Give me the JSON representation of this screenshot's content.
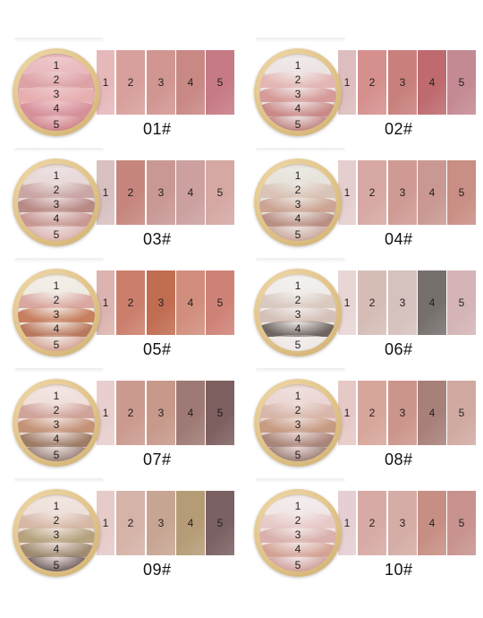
{
  "products": [
    {
      "label": "01#",
      "nums": [
        "1",
        "2",
        "3",
        "4",
        "5"
      ],
      "bands": [
        "#e9b9bd",
        "#dca2a6",
        "#e7aeb0",
        "#d6909a",
        "#c9767f"
      ],
      "swatches": [
        "#e6b8ba",
        "#d8a09c",
        "#d19692",
        "#c88884",
        "#c67a86"
      ]
    },
    {
      "label": "02#",
      "nums": [
        "1",
        "2",
        "3",
        "4",
        "5"
      ],
      "bands": [
        "#ece4e3",
        "#e3b6b4",
        "#d69a98",
        "#c98a87",
        "#b8706e"
      ],
      "swatches": [
        "#ddbdbd",
        "#d5908e",
        "#c9807c",
        "#be6a6e",
        "#c48a93"
      ]
    },
    {
      "label": "03#",
      "nums": [
        "1",
        "2",
        "3",
        "4",
        "5"
      ],
      "bands": [
        "#e8d8d8",
        "#c9a6a4",
        "#b88a86",
        "#c89893",
        "#d9aca6"
      ],
      "swatches": [
        "#d8c0c1",
        "#c6867e",
        "#c99895",
        "#cba09f",
        "#d5a8a4"
      ]
    },
    {
      "label": "04#",
      "nums": [
        "1",
        "2",
        "3",
        "4",
        "5"
      ],
      "bands": [
        "#e7e3db",
        "#d9c2b6",
        "#cda494",
        "#b98f84",
        "#c59c91"
      ],
      "swatches": [
        "#e4cfce",
        "#d7a8a4",
        "#cf9a93",
        "#c99892",
        "#c98e84"
      ]
    },
    {
      "label": "05#",
      "nums": [
        "1",
        "2",
        "3",
        "4",
        "5"
      ],
      "bands": [
        "#f0ebe2",
        "#d9a7a0",
        "#c67f5f",
        "#b9785e",
        "#d09687"
      ],
      "swatches": [
        "#dcb3ae",
        "#cb7e6c",
        "#c16d52",
        "#d18e7c",
        "#cf8277"
      ]
    },
    {
      "label": "06#",
      "nums": [
        "1",
        "2",
        "3",
        "4",
        "5"
      ],
      "bands": [
        "#f0ecea",
        "#d9c9bf",
        "#d5c0b8",
        "#6f6662",
        "#ece5e2"
      ],
      "swatches": [
        "#e8d6d5",
        "#d5bdb6",
        "#d5c1bd",
        "#76706d",
        "#d4b4b6"
      ]
    },
    {
      "label": "07#",
      "nums": [
        "1",
        "2",
        "3",
        "4",
        "5"
      ],
      "bands": [
        "#f0dfdb",
        "#cfa39a",
        "#c49277",
        "#9d7b65",
        "#876e64"
      ],
      "swatches": [
        "#e8cfcd",
        "#cb9a8f",
        "#c7998b",
        "#9f7a74",
        "#7e5f5f"
      ]
    },
    {
      "label": "08#",
      "nums": [
        "1",
        "2",
        "3",
        "4",
        "5"
      ],
      "bands": [
        "#ebd6d3",
        "#d8b7aa",
        "#c79b82",
        "#a98478",
        "#8d6d65"
      ],
      "swatches": [
        "#e6c9c6",
        "#d7a69b",
        "#cc958b",
        "#a8807a",
        "#d0aaa1"
      ]
    },
    {
      "label": "09#",
      "nums": [
        "1",
        "2",
        "3",
        "4",
        "5"
      ],
      "bands": [
        "#eedfd9",
        "#d6b8a6",
        "#b6a27d",
        "#a08b71",
        "#564545"
      ],
      "swatches": [
        "#e6cbc9",
        "#d5b3a8",
        "#c7a593",
        "#b59c76",
        "#7b6163"
      ]
    },
    {
      "label": "10#",
      "nums": [
        "1",
        "2",
        "3",
        "4",
        "5"
      ],
      "bands": [
        "#f0e7e6",
        "#e7c9c7",
        "#d9b0ab",
        "#d5a396",
        "#c9928d"
      ],
      "swatches": [
        "#e5cfd3",
        "#d7aaa5",
        "#d5aca6",
        "#c78f84",
        "#c8938e"
      ]
    }
  ]
}
